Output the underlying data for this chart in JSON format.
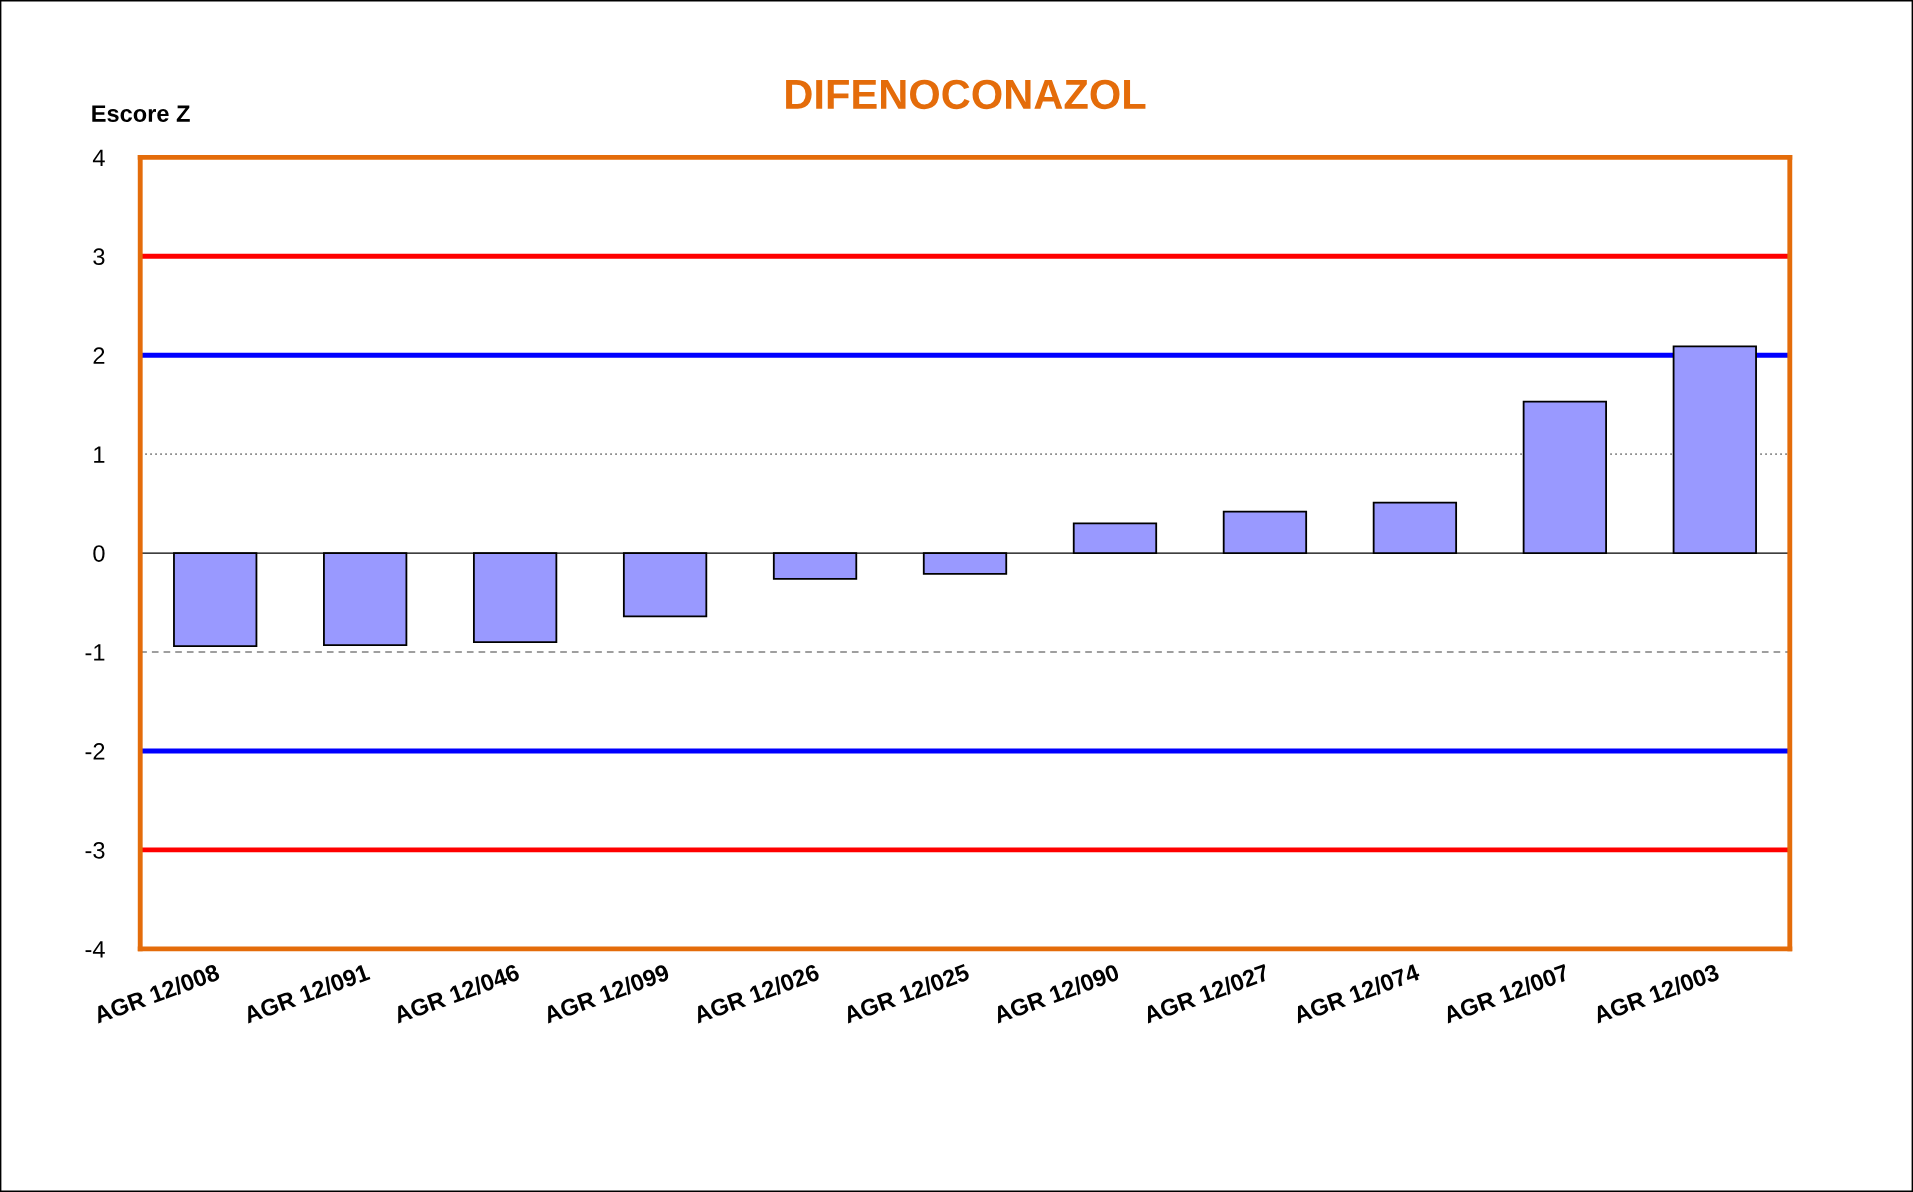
{
  "chart_data": {
    "type": "bar",
    "title": "DIFENOCONAZOL",
    "ylabel": "Escore Z",
    "categories": [
      "AGR 12/008",
      "AGR 12/091",
      "AGR 12/046",
      "AGR 12/099",
      "AGR 12/026",
      "AGR 12/025",
      "AGR 12/090",
      "AGR 12/027",
      "AGR 12/074",
      "AGR 12/007",
      "AGR 12/003"
    ],
    "values": [
      -0.94,
      -0.93,
      -0.9,
      -0.64,
      -0.26,
      -0.21,
      0.3,
      0.42,
      0.51,
      1.53,
      2.09
    ],
    "color": "#9999ff",
    "ylim": [
      -4,
      4
    ],
    "yticks": [
      -4,
      -3,
      -2,
      -1,
      0,
      1,
      2,
      3,
      4
    ],
    "grid": false,
    "ref_lines": [
      {
        "axis": "y",
        "value": 3,
        "color": "#ff0000",
        "line_style": "solid"
      },
      {
        "axis": "y",
        "value": 2,
        "color": "#0000ff",
        "line_style": "solid"
      },
      {
        "axis": "y",
        "value": 1,
        "color": "#808080",
        "line_style": "dotted"
      },
      {
        "axis": "y",
        "value": -1,
        "color": "#808080",
        "line_style": "dashed"
      },
      {
        "axis": "y",
        "value": -2,
        "color": "#0000ff",
        "line_style": "solid"
      },
      {
        "axis": "y",
        "value": -3,
        "color": "#ff0000",
        "line_style": "solid"
      }
    ]
  }
}
